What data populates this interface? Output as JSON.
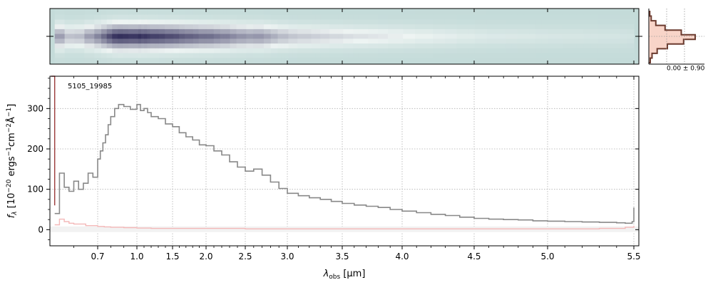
{
  "chart_data": {
    "type": "line",
    "label": "5105_19985",
    "xlabel": "λobs [μm]",
    "ylabel": "fλ [10⁻²⁰ ergs⁻¹cm⁻²Å⁻¹]",
    "ylim": [
      -40,
      380
    ],
    "yticks": [
      0,
      100,
      200,
      300
    ],
    "xticks": [
      {
        "label": "0.7",
        "x": 0.7
      },
      {
        "label": "1.0",
        "x": 1.0
      },
      {
        "label": "1.5",
        "x": 1.5
      },
      {
        "label": "2.0",
        "x": 2.0
      },
      {
        "label": "2.5",
        "x": 2.5
      },
      {
        "label": "3.0",
        "x": 3.0
      },
      {
        "label": "3.5",
        "x": 3.5
      },
      {
        "label": "4.0",
        "x": 4.0
      },
      {
        "label": "4.5",
        "x": 4.5
      },
      {
        "label": "5.0",
        "x": 5.0
      },
      {
        "label": "5.5",
        "x": 5.5
      }
    ],
    "grid": true,
    "series": [
      {
        "color": "#888888",
        "x": [
          0.52,
          0.54,
          0.56,
          0.58,
          0.6,
          0.62,
          0.64,
          0.66,
          0.68,
          0.7,
          0.72,
          0.74,
          0.76,
          0.78,
          0.8,
          0.83,
          0.86,
          0.9,
          0.95,
          1.0,
          1.05,
          1.1,
          1.15,
          1.2,
          1.3,
          1.4,
          1.5,
          1.6,
          1.7,
          1.8,
          1.9,
          2.0,
          2.1,
          2.2,
          2.3,
          2.4,
          2.5,
          2.6,
          2.7,
          2.8,
          2.9,
          3.0,
          3.1,
          3.2,
          3.3,
          3.4,
          3.5,
          3.6,
          3.7,
          3.8,
          3.9,
          4.0,
          4.1,
          4.2,
          4.3,
          4.4,
          4.5,
          4.6,
          4.7,
          4.8,
          4.9,
          5.0,
          5.1,
          5.2,
          5.3,
          5.4,
          5.45,
          5.49,
          5.5
        ],
        "y": [
          40,
          140,
          105,
          95,
          120,
          100,
          115,
          140,
          130,
          175,
          195,
          215,
          235,
          260,
          280,
          300,
          310,
          305,
          298,
          310,
          295,
          300,
          290,
          280,
          275,
          262,
          255,
          240,
          230,
          222,
          210,
          208,
          195,
          185,
          168,
          155,
          145,
          150,
          135,
          118,
          102,
          90,
          84,
          79,
          75,
          70,
          65,
          61,
          58,
          55,
          50,
          46,
          42,
          38,
          35,
          31,
          28,
          26,
          25,
          24,
          22,
          21,
          20,
          19,
          18,
          17,
          16,
          20,
          55
        ]
      },
      {
        "color": "#f4b8b8",
        "x": [
          0.52,
          0.54,
          0.56,
          0.58,
          0.6,
          0.65,
          0.7,
          0.75,
          0.8,
          0.9,
          1.0,
          1.2,
          1.5,
          2.0,
          2.5,
          3.0,
          3.5,
          4.0,
          4.5,
          5.0,
          5.3,
          5.45,
          5.5
        ],
        "y": [
          12,
          26,
          20,
          16,
          14,
          10,
          8,
          7,
          6,
          5,
          4,
          3,
          3,
          3,
          2,
          2,
          2,
          2,
          2,
          2,
          3,
          6,
          10
        ]
      },
      {
        "color": "#9b3b3b",
        "x": [
          0.505,
          0.52
        ],
        "y": [
          380,
          60
        ]
      }
    ],
    "spectrum2d": {
      "rows": [
        0.02,
        0.05,
        0.15,
        0.35,
        0.7,
        1.0,
        0.75,
        0.4,
        0.18,
        0.07,
        0.03
      ],
      "profile": [
        0.02,
        0.05,
        0.15,
        0.35,
        0.7,
        1.0,
        0.75,
        0.4,
        0.18,
        0.07,
        0.03
      ]
    },
    "profile_label": "0.00 ± 0.90"
  }
}
